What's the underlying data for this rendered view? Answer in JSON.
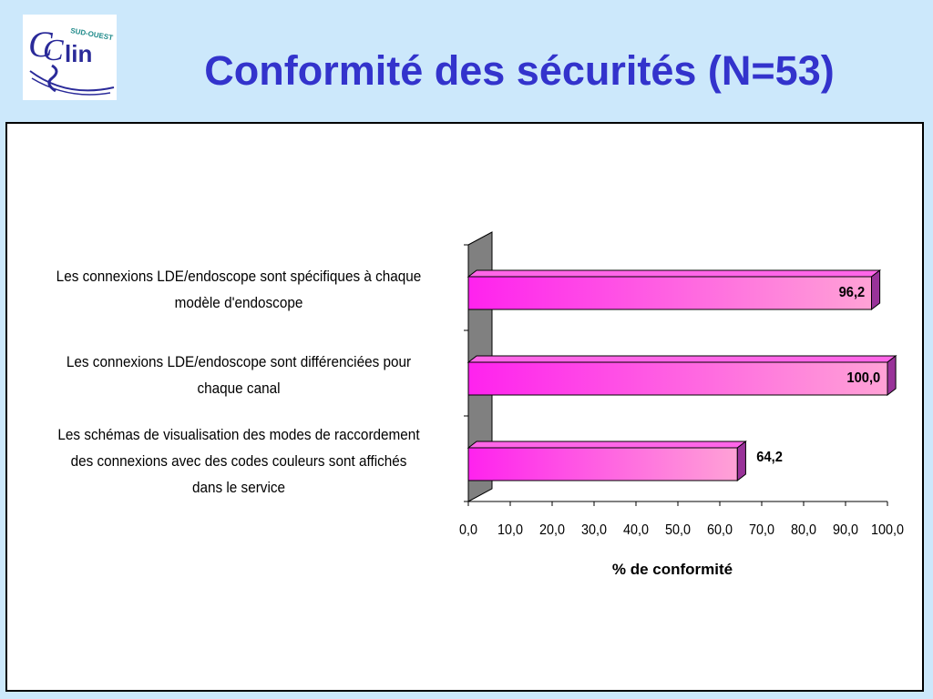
{
  "header": {
    "title": "Conformité des sécurités (N=53)",
    "logo": {
      "icon": "cclin-logo",
      "text_main": "CClin",
      "text_small": "SUD-OUEST"
    }
  },
  "colors": {
    "background": "#cce8fb",
    "title": "#3333cc",
    "bar_start": "#ff22ee",
    "bar_end": "#ffa2d6",
    "wall": "#808080"
  },
  "chart_data": {
    "type": "bar",
    "orientation": "horizontal",
    "style": "3d",
    "categories": [
      "Les connexions LDE/endoscope sont spécifiques à chaque modèle d'endoscope",
      "Les connexions LDE/endoscope sont différenciées pour chaque canal",
      "Les schémas de visualisation des modes de raccordement des connexions avec des codes couleurs sont affichés dans le service"
    ],
    "category_lines": [
      [
        "Les connexions LDE/endoscope sont spécifiques à chaque",
        "modèle d'endoscope"
      ],
      [
        "Les connexions LDE/endoscope sont différenciées pour",
        "chaque canal"
      ],
      [
        "Les schémas de visualisation des modes de raccordement",
        "des connexions avec des codes couleurs sont affichés",
        "dans le service"
      ]
    ],
    "values": [
      96.2,
      100.0,
      64.2
    ],
    "value_labels": [
      "96,2",
      "100,0",
      "64,2"
    ],
    "xlim": [
      0,
      100
    ],
    "xticks": [
      0,
      10,
      20,
      30,
      40,
      50,
      60,
      70,
      80,
      90,
      100
    ],
    "xtick_labels": [
      "0,0",
      "10,0",
      "20,0",
      "30,0",
      "40,0",
      "50,0",
      "60,0",
      "70,0",
      "80,0",
      "90,0",
      "100,0"
    ],
    "xlabel": "% de conformité",
    "ylabel": "",
    "grid": false,
    "legend": "none"
  }
}
